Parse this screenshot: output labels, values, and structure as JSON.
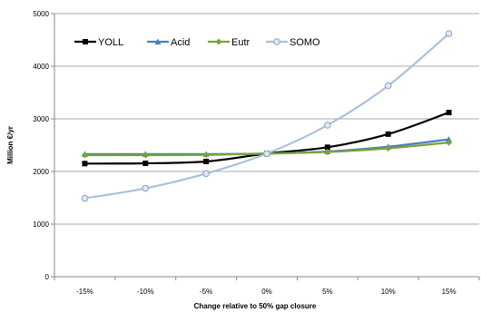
{
  "chart_data": {
    "type": "line",
    "categories": [
      "-15%",
      "-10%",
      "-5%",
      "0%",
      "5%",
      "10%",
      "15%"
    ],
    "series": [
      {
        "name": "YOLL",
        "values": [
          2150,
          2155,
          2190,
          2340,
          2460,
          2710,
          3120
        ],
        "color": "#000000",
        "marker": "square"
      },
      {
        "name": "Acid",
        "values": [
          2330,
          2330,
          2330,
          2340,
          2380,
          2470,
          2610
        ],
        "color": "#4a7fbf",
        "marker": "triangle"
      },
      {
        "name": "Eutr",
        "values": [
          2310,
          2310,
          2315,
          2340,
          2370,
          2440,
          2550
        ],
        "color": "#77a33a",
        "marker": "diamond"
      },
      {
        "name": "SOMO",
        "values": [
          1490,
          1680,
          1960,
          2340,
          2880,
          3630,
          4620
        ],
        "color": "#a9c1dc",
        "marker": "circle"
      }
    ],
    "xlabel": "Change relative to 50% gap closure",
    "ylabel": "Million €/yr",
    "ylim": [
      0,
      5000
    ],
    "yticks": [
      0,
      1000,
      2000,
      3000,
      4000,
      5000
    ],
    "grid": true,
    "legend_position": "top-left"
  }
}
